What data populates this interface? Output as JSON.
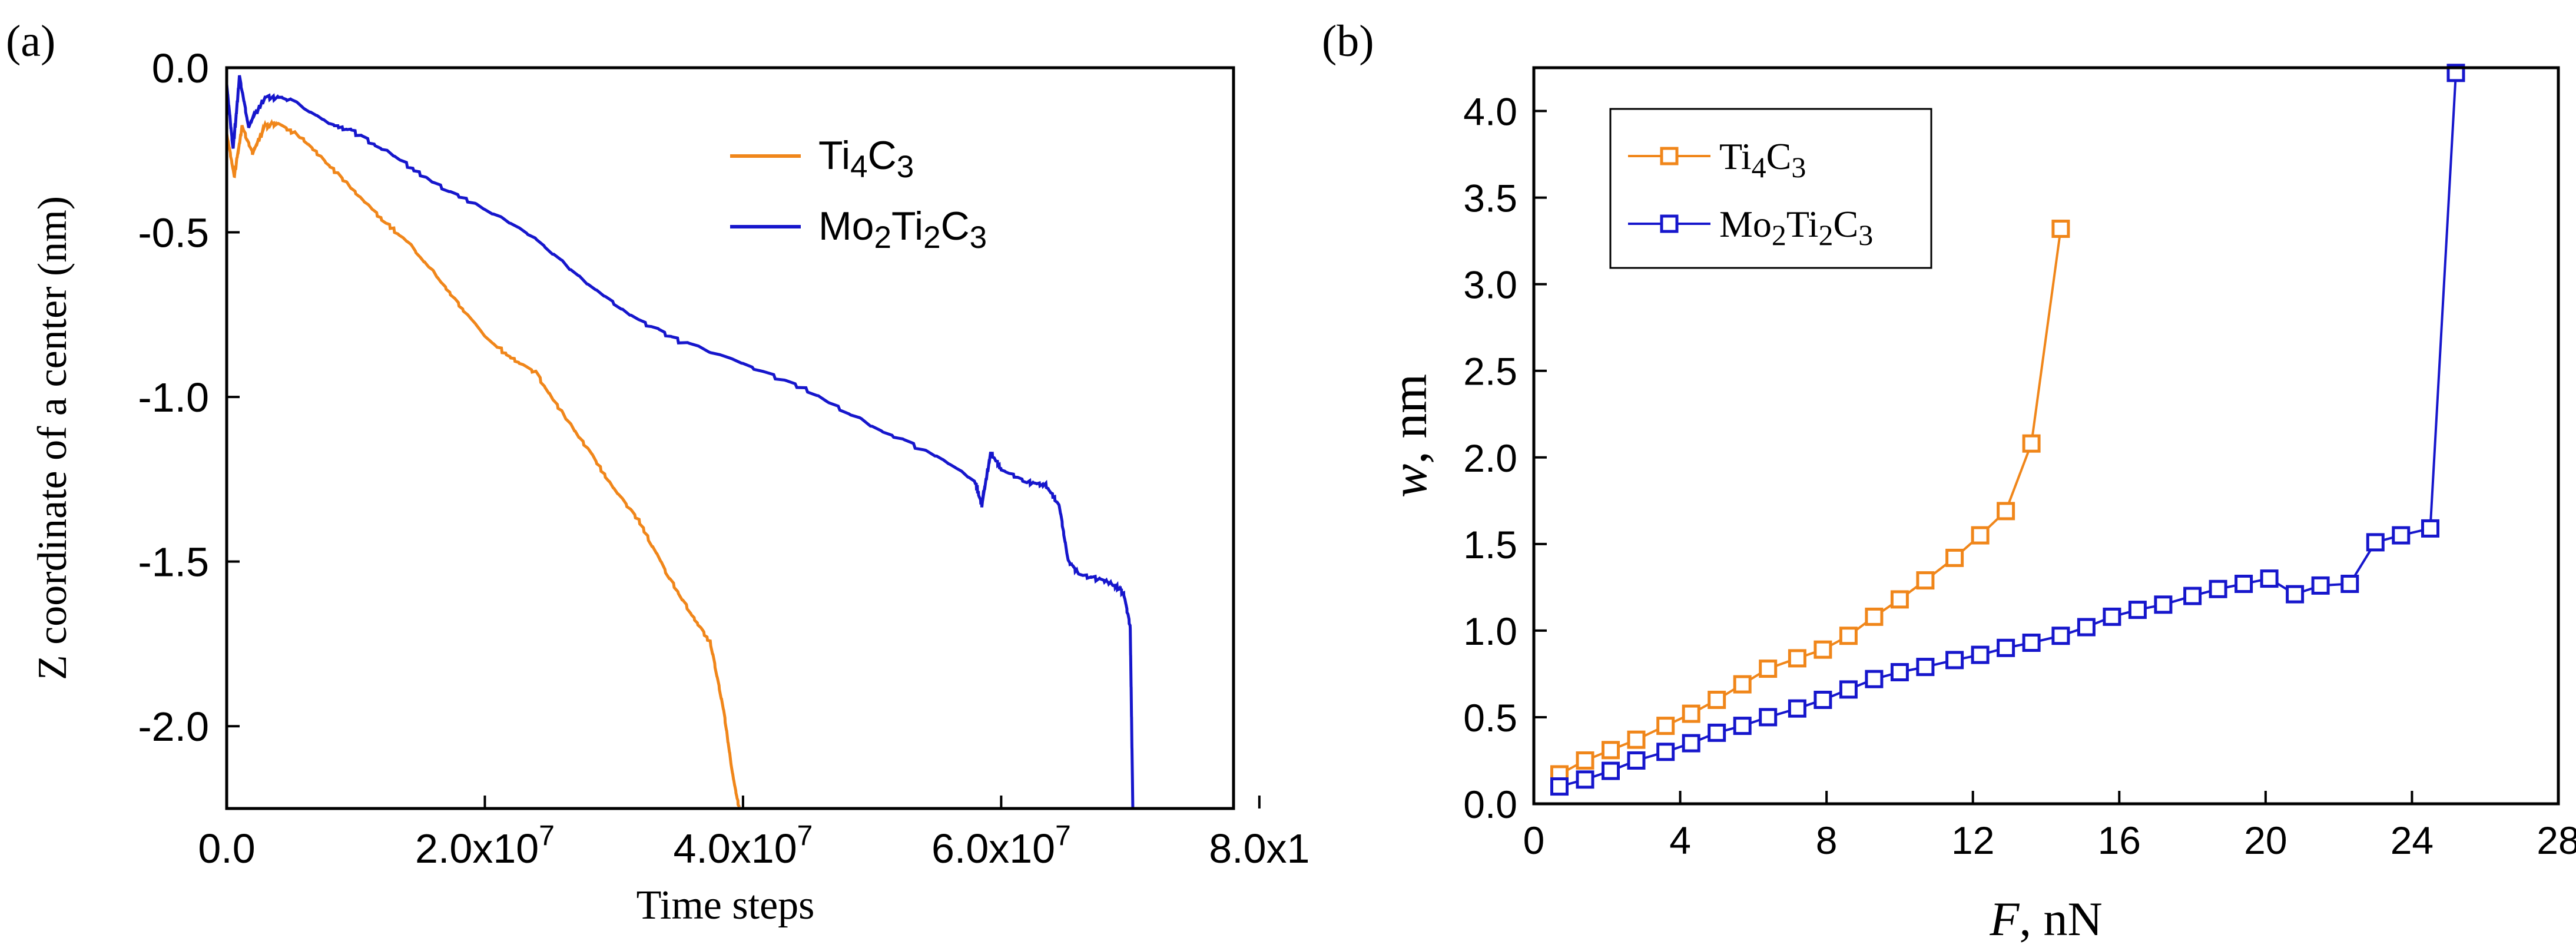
{
  "chart_data": [
    {
      "panel_label": "(a)",
      "type": "line",
      "title": "",
      "xlabel": "Time steps",
      "ylabel": "Z coordinate of a center (nm)",
      "xlim": [
        0,
        78000000
      ],
      "ylim": [
        -2.25,
        0
      ],
      "x_ticks": [
        {
          "value": 0,
          "label": "0.0"
        },
        {
          "value": 20000000,
          "label": "2.0x10",
          "exp": "7"
        },
        {
          "value": 40000000,
          "label": "4.0x10",
          "exp": "7"
        },
        {
          "value": 60000000,
          "label": "6.0x10",
          "exp": "7"
        },
        {
          "value": 80000000,
          "label": "8.0x1",
          "exp": ""
        }
      ],
      "y_ticks": [
        {
          "value": 0,
          "label": "0.0"
        },
        {
          "value": -0.5,
          "label": "-0.5"
        },
        {
          "value": -1.0,
          "label": "-1.0"
        },
        {
          "value": -1.5,
          "label": "-1.5"
        },
        {
          "value": -2.0,
          "label": "-2.0"
        }
      ],
      "legend": {
        "position": "top-right"
      },
      "series": [
        {
          "name": "Ti4C3",
          "name_parts": [
            [
              "Ti",
              false
            ],
            [
              "4",
              true
            ],
            [
              "C",
              false
            ],
            [
              "3",
              true
            ]
          ],
          "color": "#F0861A",
          "points": [
            [
              0,
              -0.2
            ],
            [
              600000,
              -0.33
            ],
            [
              1200000,
              -0.18
            ],
            [
              2000000,
              -0.26
            ],
            [
              3000000,
              -0.18
            ],
            [
              4000000,
              -0.17
            ],
            [
              6000000,
              -0.22
            ],
            [
              8000000,
              -0.3
            ],
            [
              10000000,
              -0.38
            ],
            [
              12000000,
              -0.46
            ],
            [
              14000000,
              -0.53
            ],
            [
              16000000,
              -0.62
            ],
            [
              18000000,
              -0.72
            ],
            [
              20000000,
              -0.82
            ],
            [
              22000000,
              -0.88
            ],
            [
              24000000,
              -0.93
            ],
            [
              26000000,
              -1.05
            ],
            [
              28000000,
              -1.16
            ],
            [
              30000000,
              -1.28
            ],
            [
              32000000,
              -1.38
            ],
            [
              34000000,
              -1.53
            ],
            [
              36000000,
              -1.66
            ],
            [
              37500000,
              -1.75
            ],
            [
              38500000,
              -1.95
            ],
            [
              39200000,
              -2.15
            ],
            [
              39700000,
              -2.25
            ]
          ]
        },
        {
          "name": "Mo2Ti2C3",
          "name_parts": [
            [
              "Mo",
              false
            ],
            [
              "2",
              true
            ],
            [
              "Ti",
              false
            ],
            [
              "2",
              true
            ],
            [
              "C",
              false
            ],
            [
              "3",
              true
            ]
          ],
          "color": "#1616CC",
          "points": [
            [
              0,
              -0.05
            ],
            [
              500000,
              -0.25
            ],
            [
              1000000,
              -0.03
            ],
            [
              1700000,
              -0.18
            ],
            [
              3000000,
              -0.09
            ],
            [
              5000000,
              -0.1
            ],
            [
              8000000,
              -0.17
            ],
            [
              10000000,
              -0.2
            ],
            [
              13000000,
              -0.27
            ],
            [
              16000000,
              -0.35
            ],
            [
              20000000,
              -0.43
            ],
            [
              24000000,
              -0.52
            ],
            [
              28000000,
              -0.66
            ],
            [
              32000000,
              -0.77
            ],
            [
              35000000,
              -0.83
            ],
            [
              40000000,
              -0.9
            ],
            [
              45000000,
              -0.98
            ],
            [
              50000000,
              -1.09
            ],
            [
              55000000,
              -1.18
            ],
            [
              58000000,
              -1.26
            ],
            [
              58500000,
              -1.33
            ],
            [
              59200000,
              -1.17
            ],
            [
              60000000,
              -1.22
            ],
            [
              62000000,
              -1.26
            ],
            [
              63500000,
              -1.27
            ],
            [
              64500000,
              -1.33
            ],
            [
              65200000,
              -1.5
            ],
            [
              66000000,
              -1.54
            ],
            [
              68000000,
              -1.56
            ],
            [
              69000000,
              -1.58
            ],
            [
              69500000,
              -1.6
            ],
            [
              70000000,
              -1.7
            ],
            [
              70200000,
              -2.25
            ]
          ]
        }
      ]
    },
    {
      "panel_label": "(b)",
      "type": "line",
      "title": "",
      "xlabel": "F",
      "xunit": ", nN",
      "ylabel": "w",
      "yunit": ", nm",
      "xlim": [
        0,
        28
      ],
      "ylim": [
        0,
        4.25
      ],
      "x_ticks": [
        {
          "value": 0,
          "label": "0"
        },
        {
          "value": 4,
          "label": "4"
        },
        {
          "value": 8,
          "label": "8"
        },
        {
          "value": 12,
          "label": "12"
        },
        {
          "value": 16,
          "label": "16"
        },
        {
          "value": 20,
          "label": "20"
        },
        {
          "value": 24,
          "label": "24"
        },
        {
          "value": 28,
          "label": "28"
        }
      ],
      "y_ticks": [
        {
          "value": 0,
          "label": "0.0"
        },
        {
          "value": 0.5,
          "label": "0.5"
        },
        {
          "value": 1.0,
          "label": "1.0"
        },
        {
          "value": 1.5,
          "label": "1.5"
        },
        {
          "value": 2.0,
          "label": "2.0"
        },
        {
          "value": 2.5,
          "label": "2.5"
        },
        {
          "value": 3.0,
          "label": "3.0"
        },
        {
          "value": 3.5,
          "label": "3.5"
        },
        {
          "value": 4.0,
          "label": "4.0"
        }
      ],
      "legend": {
        "position": "top-left"
      },
      "series": [
        {
          "name": "Ti4C3",
          "name_parts": [
            [
              "Ti",
              false
            ],
            [
              "4",
              true
            ],
            [
              "C",
              false
            ],
            [
              "3",
              true
            ]
          ],
          "color": "#F0861A",
          "x": [
            0.7,
            1.4,
            2.1,
            2.8,
            3.6,
            4.3,
            5.0,
            5.7,
            6.4,
            7.2,
            7.9,
            8.6,
            9.3,
            10.0,
            10.7,
            11.5,
            12.2,
            12.9,
            13.6,
            14.4
          ],
          "y": [
            0.17,
            0.25,
            0.31,
            0.37,
            0.45,
            0.52,
            0.6,
            0.69,
            0.78,
            0.84,
            0.89,
            0.97,
            1.08,
            1.18,
            1.29,
            1.42,
            1.55,
            1.69,
            2.08,
            3.32
          ]
        },
        {
          "name": "Mo2Ti2C3",
          "name_parts": [
            [
              "Mo",
              false
            ],
            [
              "2",
              true
            ],
            [
              "Ti",
              false
            ],
            [
              "2",
              true
            ],
            [
              "C",
              false
            ],
            [
              "3",
              true
            ]
          ],
          "color": "#1616CC",
          "x": [
            0.7,
            1.4,
            2.1,
            2.8,
            3.6,
            4.3,
            5.0,
            5.7,
            6.4,
            7.2,
            7.9,
            8.6,
            9.3,
            10.0,
            10.7,
            11.5,
            12.2,
            12.9,
            13.6,
            14.4,
            15.1,
            15.8,
            16.5,
            17.2,
            18.0,
            18.7,
            19.4,
            20.1,
            20.8,
            21.5,
            22.3,
            23.0,
            23.7,
            24.5,
            25.2
          ],
          "y": [
            0.1,
            0.14,
            0.19,
            0.25,
            0.3,
            0.35,
            0.41,
            0.45,
            0.5,
            0.55,
            0.6,
            0.66,
            0.72,
            0.76,
            0.79,
            0.83,
            0.86,
            0.9,
            0.93,
            0.97,
            1.02,
            1.08,
            1.12,
            1.15,
            1.2,
            1.24,
            1.27,
            1.3,
            1.21,
            1.26,
            1.27,
            1.51,
            1.55,
            1.59,
            4.22
          ]
        }
      ]
    }
  ]
}
